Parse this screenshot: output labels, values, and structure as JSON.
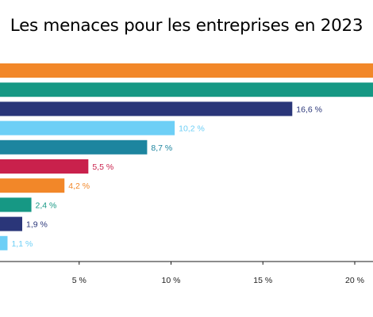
{
  "title": "Les menaces pour les entreprises en 2023",
  "colors": {
    "orange": "#f28729",
    "teal": "#169884",
    "navy": "#2a3679",
    "light_blue": "#6dcff6",
    "blue": "#1d859f",
    "crimson": "#c9214c"
  },
  "chart_data": {
    "type": "bar",
    "orientation": "horizontal",
    "title": "Les menaces pour les entreprises en 2023",
    "xlabel": "",
    "ylabel": "",
    "xlim": [
      0,
      20
    ],
    "categories": [
      "",
      "",
      "",
      "",
      "",
      "",
      "",
      "",
      "",
      ""
    ],
    "values": [
      21.0,
      21.0,
      16.6,
      10.2,
      8.7,
      5.5,
      4.2,
      2.4,
      1.9,
      1.1
    ],
    "value_labels": [
      "",
      "",
      "16,6 %",
      "10,2 %",
      "8,7 %",
      "5,5 %",
      "4,2 %",
      "2,4 %",
      "1,9 %",
      "1,1 %"
    ],
    "bar_colors": [
      "#f28729",
      "#169884",
      "#2a3679",
      "#6dcff6",
      "#1d859f",
      "#c9214c",
      "#f28729",
      "#169884",
      "#2a3679",
      "#6dcff6"
    ],
    "x_ticks": [
      {
        "value": 5,
        "label": "5 %"
      },
      {
        "value": 10,
        "label": "10 %"
      },
      {
        "value": 15,
        "label": "15 %"
      },
      {
        "value": 20,
        "label": "20 %"
      }
    ],
    "grid": false
  }
}
